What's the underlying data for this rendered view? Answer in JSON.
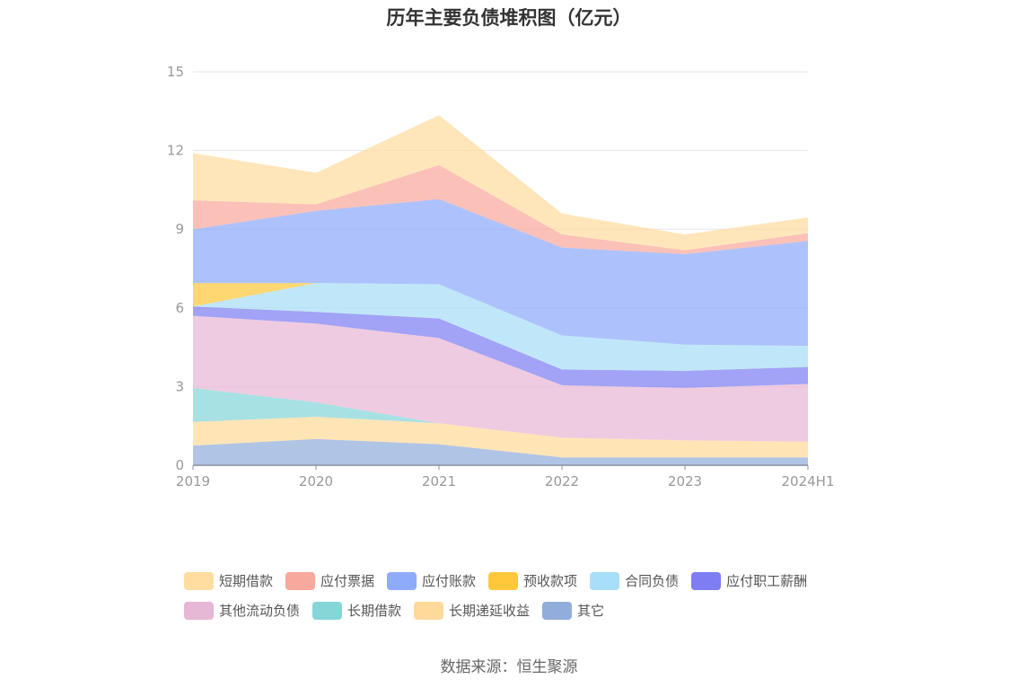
{
  "chart_data": {
    "type": "area",
    "stacked": true,
    "title": "历年主要负债堆积图（亿元）",
    "x": [
      "2019",
      "2020",
      "2021",
      "2022",
      "2023",
      "2024H1"
    ],
    "ylim": [
      0,
      15
    ],
    "yticks": [
      "0",
      "3",
      "6",
      "9",
      "12",
      "15"
    ],
    "grid": true,
    "legend_position": "bottom",
    "series": [
      {
        "name": "其它",
        "color": "#91ADDB",
        "values": [
          0.75,
          1.0,
          0.8,
          0.3,
          0.3,
          0.3
        ]
      },
      {
        "name": "长期递延收益",
        "color": "#FFD99A",
        "values": [
          0.9,
          0.85,
          0.8,
          0.75,
          0.65,
          0.6
        ]
      },
      {
        "name": "长期借款",
        "color": "#86D6D8",
        "values": [
          1.3,
          0.55,
          0.0,
          0.0,
          0.0,
          0.0
        ]
      },
      {
        "name": "其他流动负债",
        "color": "#E7B7D6",
        "values": [
          2.75,
          3.0,
          3.25,
          2.0,
          2.0,
          2.2
        ]
      },
      {
        "name": "应付职工薪酬",
        "color": "#7E7EF2",
        "values": [
          0.35,
          0.45,
          0.75,
          0.6,
          0.65,
          0.65
        ]
      },
      {
        "name": "合同负债",
        "color": "#A8DEF7",
        "values": [
          0.0,
          1.1,
          1.3,
          1.3,
          1.0,
          0.8
        ]
      },
      {
        "name": "预收款项",
        "color": "#FFC73C",
        "values": [
          0.9,
          0.0,
          0.0,
          0.0,
          0.0,
          0.0
        ]
      },
      {
        "name": "应付账款",
        "color": "#8EAAFB",
        "values": [
          2.05,
          2.75,
          3.25,
          3.35,
          3.45,
          4.0
        ]
      },
      {
        "name": "应付票据",
        "color": "#F9A89D",
        "values": [
          1.1,
          0.25,
          1.3,
          0.5,
          0.15,
          0.3
        ]
      },
      {
        "name": "短期借款",
        "color": "#FFDCA0",
        "values": [
          1.8,
          1.2,
          1.9,
          0.8,
          0.6,
          0.6
        ]
      }
    ]
  },
  "legend_rows": [
    [
      "短期借款",
      "应付票据",
      "应付账款",
      "预收款项",
      "合同负债",
      "应付职工薪酬"
    ],
    [
      "其他流动负债",
      "长期借款",
      "长期递延收益",
      "其它"
    ]
  ],
  "source": "数据来源：恒生聚源"
}
